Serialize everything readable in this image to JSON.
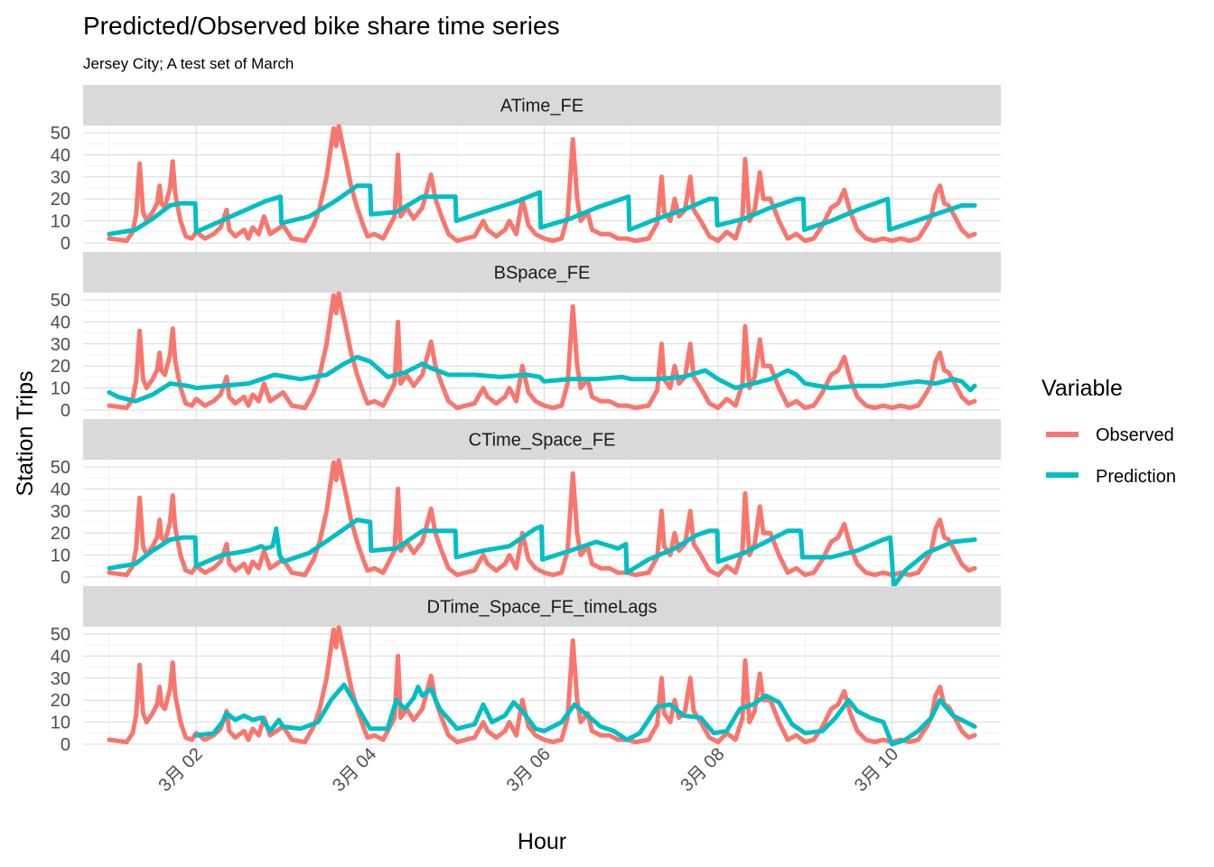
{
  "chart_data": {
    "type": "line",
    "title": "Predicted/Observed bike share time series",
    "subtitle": "Jersey City; A test set of March",
    "xlabel": "Hour",
    "ylabel": "Station Trips",
    "x_range_days": [
      1.0,
      10.95
    ],
    "x_ticks": [
      {
        "day": 2,
        "label": "3月 02"
      },
      {
        "day": 4,
        "label": "3月 04"
      },
      {
        "day": 6,
        "label": "3月 06"
      },
      {
        "day": 8,
        "label": "3月 08"
      },
      {
        "day": 10,
        "label": "3月 10"
      }
    ],
    "ylim": [
      0,
      50
    ],
    "y_ticks": [
      0,
      10,
      20,
      30,
      40,
      50
    ],
    "grid": true,
    "legend": {
      "title": "Variable",
      "position": "right",
      "entries": [
        {
          "name": "Observed",
          "color": "#F8766D"
        },
        {
          "name": "Prediction",
          "color": "#00BFC4"
        }
      ]
    },
    "observed": [
      [
        1.0,
        2
      ],
      [
        1.2,
        1
      ],
      [
        1.27,
        5
      ],
      [
        1.31,
        13
      ],
      [
        1.35,
        36
      ],
      [
        1.39,
        14
      ],
      [
        1.43,
        10
      ],
      [
        1.5,
        14
      ],
      [
        1.55,
        18
      ],
      [
        1.58,
        26
      ],
      [
        1.6,
        18
      ],
      [
        1.64,
        16
      ],
      [
        1.7,
        25
      ],
      [
        1.73,
        37
      ],
      [
        1.76,
        22
      ],
      [
        1.82,
        10
      ],
      [
        1.88,
        3
      ],
      [
        1.95,
        2
      ],
      [
        2.0,
        5
      ],
      [
        2.1,
        2
      ],
      [
        2.2,
        4
      ],
      [
        2.28,
        7
      ],
      [
        2.35,
        15
      ],
      [
        2.38,
        6
      ],
      [
        2.45,
        3
      ],
      [
        2.55,
        6
      ],
      [
        2.6,
        2
      ],
      [
        2.65,
        7
      ],
      [
        2.72,
        4
      ],
      [
        2.78,
        12
      ],
      [
        2.85,
        4
      ],
      [
        3.0,
        8
      ],
      [
        3.1,
        2
      ],
      [
        3.25,
        1
      ],
      [
        3.35,
        8
      ],
      [
        3.42,
        16
      ],
      [
        3.5,
        30
      ],
      [
        3.55,
        44
      ],
      [
        3.58,
        52
      ],
      [
        3.61,
        44
      ],
      [
        3.64,
        53
      ],
      [
        3.68,
        45
      ],
      [
        3.72,
        38
      ],
      [
        3.78,
        26
      ],
      [
        3.85,
        16
      ],
      [
        3.92,
        8
      ],
      [
        3.97,
        3
      ],
      [
        4.05,
        4
      ],
      [
        4.15,
        2
      ],
      [
        4.28,
        12
      ],
      [
        4.32,
        40
      ],
      [
        4.35,
        12
      ],
      [
        4.42,
        16
      ],
      [
        4.5,
        11
      ],
      [
        4.6,
        16
      ],
      [
        4.7,
        31
      ],
      [
        4.75,
        20
      ],
      [
        4.82,
        12
      ],
      [
        4.9,
        4
      ],
      [
        5.0,
        1
      ],
      [
        5.1,
        2
      ],
      [
        5.2,
        3
      ],
      [
        5.3,
        10
      ],
      [
        5.35,
        6
      ],
      [
        5.45,
        3
      ],
      [
        5.55,
        6
      ],
      [
        5.6,
        10
      ],
      [
        5.68,
        4
      ],
      [
        5.75,
        20
      ],
      [
        5.82,
        8
      ],
      [
        5.9,
        4
      ],
      [
        6.0,
        2
      ],
      [
        6.1,
        1
      ],
      [
        6.2,
        2
      ],
      [
        6.27,
        12
      ],
      [
        6.33,
        47
      ],
      [
        6.38,
        20
      ],
      [
        6.42,
        10
      ],
      [
        6.5,
        14
      ],
      [
        6.55,
        6
      ],
      [
        6.65,
        4
      ],
      [
        6.75,
        4
      ],
      [
        6.85,
        2
      ],
      [
        6.95,
        2
      ],
      [
        7.05,
        1
      ],
      [
        7.2,
        2
      ],
      [
        7.3,
        9
      ],
      [
        7.35,
        30
      ],
      [
        7.38,
        14
      ],
      [
        7.45,
        10
      ],
      [
        7.5,
        20
      ],
      [
        7.55,
        12
      ],
      [
        7.62,
        15
      ],
      [
        7.68,
        30
      ],
      [
        7.72,
        15
      ],
      [
        7.8,
        10
      ],
      [
        7.9,
        3
      ],
      [
        8.0,
        1
      ],
      [
        8.1,
        5
      ],
      [
        8.2,
        2
      ],
      [
        8.28,
        12
      ],
      [
        8.31,
        38
      ],
      [
        8.36,
        10
      ],
      [
        8.42,
        15
      ],
      [
        8.48,
        32
      ],
      [
        8.52,
        20
      ],
      [
        8.6,
        20
      ],
      [
        8.7,
        10
      ],
      [
        8.8,
        2
      ],
      [
        8.9,
        4
      ],
      [
        9.0,
        1
      ],
      [
        9.1,
        2
      ],
      [
        9.2,
        8
      ],
      [
        9.3,
        16
      ],
      [
        9.38,
        18
      ],
      [
        9.45,
        24
      ],
      [
        9.52,
        14
      ],
      [
        9.6,
        6
      ],
      [
        9.7,
        2
      ],
      [
        9.8,
        1
      ],
      [
        9.9,
        2
      ],
      [
        10.0,
        1
      ],
      [
        10.1,
        2
      ],
      [
        10.2,
        1
      ],
      [
        10.3,
        2
      ],
      [
        10.4,
        8
      ],
      [
        10.45,
        12
      ],
      [
        10.5,
        22
      ],
      [
        10.55,
        26
      ],
      [
        10.6,
        18
      ],
      [
        10.65,
        17
      ],
      [
        10.72,
        12
      ],
      [
        10.8,
        6
      ],
      [
        10.88,
        3
      ],
      [
        10.95,
        4
      ]
    ],
    "panels": [
      {
        "label": "ATime_FE",
        "prediction": [
          [
            1.0,
            4
          ],
          [
            1.3,
            6
          ],
          [
            1.5,
            11
          ],
          [
            1.7,
            17
          ],
          [
            1.82,
            18
          ],
          [
            1.99,
            18
          ],
          [
            2.0,
            5
          ],
          [
            2.4,
            12
          ],
          [
            2.8,
            19
          ],
          [
            2.97,
            21
          ],
          [
            2.98,
            9
          ],
          [
            3.3,
            12
          ],
          [
            3.6,
            19
          ],
          [
            3.85,
            26
          ],
          [
            4.0,
            26
          ],
          [
            4.01,
            13
          ],
          [
            4.3,
            14
          ],
          [
            4.6,
            21
          ],
          [
            4.85,
            21
          ],
          [
            4.98,
            21
          ],
          [
            4.99,
            10
          ],
          [
            5.3,
            14
          ],
          [
            5.7,
            19
          ],
          [
            5.95,
            23
          ],
          [
            5.96,
            7
          ],
          [
            6.3,
            11
          ],
          [
            6.6,
            16
          ],
          [
            6.97,
            21
          ],
          [
            6.98,
            6
          ],
          [
            7.3,
            11
          ],
          [
            7.6,
            15
          ],
          [
            7.9,
            20
          ],
          [
            7.98,
            20
          ],
          [
            7.99,
            8
          ],
          [
            8.3,
            11
          ],
          [
            8.6,
            16
          ],
          [
            8.9,
            20
          ],
          [
            8.98,
            20
          ],
          [
            8.99,
            6
          ],
          [
            9.3,
            10
          ],
          [
            9.6,
            15
          ],
          [
            9.95,
            20
          ],
          [
            9.97,
            6
          ],
          [
            10.2,
            9
          ],
          [
            10.5,
            13
          ],
          [
            10.8,
            17
          ],
          [
            10.95,
            17
          ]
        ]
      },
      {
        "label": "BSpace_FE",
        "prediction": [
          [
            1.0,
            8
          ],
          [
            1.1,
            6
          ],
          [
            1.3,
            4
          ],
          [
            1.5,
            7
          ],
          [
            1.7,
            12
          ],
          [
            1.9,
            11
          ],
          [
            2.0,
            10
          ],
          [
            2.3,
            11
          ],
          [
            2.6,
            12
          ],
          [
            2.9,
            16
          ],
          [
            3.2,
            14
          ],
          [
            3.5,
            16
          ],
          [
            3.7,
            21
          ],
          [
            3.85,
            24
          ],
          [
            4.0,
            22
          ],
          [
            4.2,
            15
          ],
          [
            4.4,
            17
          ],
          [
            4.6,
            21
          ],
          [
            4.7,
            19
          ],
          [
            4.9,
            16
          ],
          [
            5.2,
            16
          ],
          [
            5.5,
            15
          ],
          [
            5.8,
            16
          ],
          [
            5.95,
            15
          ],
          [
            6.0,
            13
          ],
          [
            6.3,
            14
          ],
          [
            6.6,
            14
          ],
          [
            6.9,
            15
          ],
          [
            7.0,
            14
          ],
          [
            7.3,
            14
          ],
          [
            7.6,
            15
          ],
          [
            7.85,
            18
          ],
          [
            8.0,
            14
          ],
          [
            8.2,
            10
          ],
          [
            8.4,
            12
          ],
          [
            8.6,
            14
          ],
          [
            8.8,
            18
          ],
          [
            8.9,
            16
          ],
          [
            9.0,
            12
          ],
          [
            9.3,
            10
          ],
          [
            9.6,
            11
          ],
          [
            9.9,
            11
          ],
          [
            10.1,
            12
          ],
          [
            10.3,
            13
          ],
          [
            10.5,
            12
          ],
          [
            10.7,
            14
          ],
          [
            10.8,
            13
          ],
          [
            10.9,
            9
          ],
          [
            10.95,
            11
          ]
        ]
      },
      {
        "label": "CTime_Space_FE",
        "prediction": [
          [
            1.0,
            4
          ],
          [
            1.3,
            6
          ],
          [
            1.5,
            12
          ],
          [
            1.7,
            17
          ],
          [
            1.85,
            18
          ],
          [
            1.99,
            18
          ],
          [
            2.0,
            5
          ],
          [
            2.3,
            10
          ],
          [
            2.6,
            12
          ],
          [
            2.75,
            14
          ],
          [
            2.8,
            13
          ],
          [
            2.88,
            14
          ],
          [
            2.92,
            22
          ],
          [
            2.96,
            10
          ],
          [
            3.0,
            7
          ],
          [
            3.3,
            11
          ],
          [
            3.6,
            19
          ],
          [
            3.85,
            26
          ],
          [
            4.0,
            25
          ],
          [
            4.01,
            12
          ],
          [
            4.3,
            13
          ],
          [
            4.6,
            21
          ],
          [
            4.85,
            21
          ],
          [
            4.98,
            21
          ],
          [
            4.99,
            9
          ],
          [
            5.3,
            12
          ],
          [
            5.6,
            14
          ],
          [
            5.75,
            18
          ],
          [
            5.9,
            22
          ],
          [
            5.97,
            23
          ],
          [
            5.98,
            8
          ],
          [
            6.3,
            12
          ],
          [
            6.6,
            16
          ],
          [
            6.85,
            13
          ],
          [
            6.94,
            15
          ],
          [
            6.95,
            2
          ],
          [
            7.2,
            8
          ],
          [
            7.5,
            13
          ],
          [
            7.75,
            19
          ],
          [
            7.9,
            21
          ],
          [
            7.99,
            21
          ],
          [
            8.0,
            7
          ],
          [
            8.3,
            11
          ],
          [
            8.6,
            17
          ],
          [
            8.8,
            21
          ],
          [
            8.95,
            21
          ],
          [
            8.97,
            9
          ],
          [
            9.3,
            9
          ],
          [
            9.6,
            12
          ],
          [
            9.9,
            17
          ],
          [
            9.98,
            18
          ],
          [
            10.02,
            -4
          ],
          [
            10.15,
            3
          ],
          [
            10.4,
            11
          ],
          [
            10.7,
            16
          ],
          [
            10.95,
            17
          ]
        ]
      },
      {
        "label": "DTime_Space_FE_timeLags",
        "prediction": [
          [
            2.0,
            4
          ],
          [
            2.2,
            5
          ],
          [
            2.3,
            10
          ],
          [
            2.35,
            14
          ],
          [
            2.45,
            11
          ],
          [
            2.55,
            13
          ],
          [
            2.65,
            11
          ],
          [
            2.75,
            12
          ],
          [
            2.85,
            6
          ],
          [
            2.95,
            11
          ],
          [
            3.0,
            8
          ],
          [
            3.2,
            7
          ],
          [
            3.4,
            10
          ],
          [
            3.55,
            20
          ],
          [
            3.7,
            27
          ],
          [
            3.85,
            17
          ],
          [
            4.0,
            7
          ],
          [
            4.2,
            7
          ],
          [
            4.3,
            20
          ],
          [
            4.4,
            16
          ],
          [
            4.5,
            21
          ],
          [
            4.55,
            26
          ],
          [
            4.6,
            22
          ],
          [
            4.7,
            25
          ],
          [
            4.8,
            16
          ],
          [
            5.0,
            7
          ],
          [
            5.2,
            9
          ],
          [
            5.3,
            18
          ],
          [
            5.4,
            10
          ],
          [
            5.55,
            13
          ],
          [
            5.65,
            19
          ],
          [
            5.75,
            15
          ],
          [
            5.9,
            7
          ],
          [
            6.0,
            6
          ],
          [
            6.2,
            10
          ],
          [
            6.35,
            18
          ],
          [
            6.5,
            13
          ],
          [
            6.65,
            8
          ],
          [
            6.8,
            6
          ],
          [
            6.95,
            2
          ],
          [
            7.1,
            5
          ],
          [
            7.3,
            17
          ],
          [
            7.45,
            18
          ],
          [
            7.6,
            13
          ],
          [
            7.8,
            12
          ],
          [
            7.95,
            5
          ],
          [
            8.1,
            6
          ],
          [
            8.25,
            16
          ],
          [
            8.4,
            18
          ],
          [
            8.55,
            22
          ],
          [
            8.7,
            19
          ],
          [
            8.85,
            9
          ],
          [
            9.0,
            5
          ],
          [
            9.2,
            6
          ],
          [
            9.35,
            12
          ],
          [
            9.5,
            20
          ],
          [
            9.6,
            15
          ],
          [
            9.75,
            12
          ],
          [
            9.9,
            10
          ],
          [
            10.0,
            0
          ],
          [
            10.15,
            2
          ],
          [
            10.3,
            6
          ],
          [
            10.45,
            12
          ],
          [
            10.55,
            20
          ],
          [
            10.7,
            13
          ],
          [
            10.85,
            10
          ],
          [
            10.95,
            8
          ]
        ]
      }
    ]
  }
}
